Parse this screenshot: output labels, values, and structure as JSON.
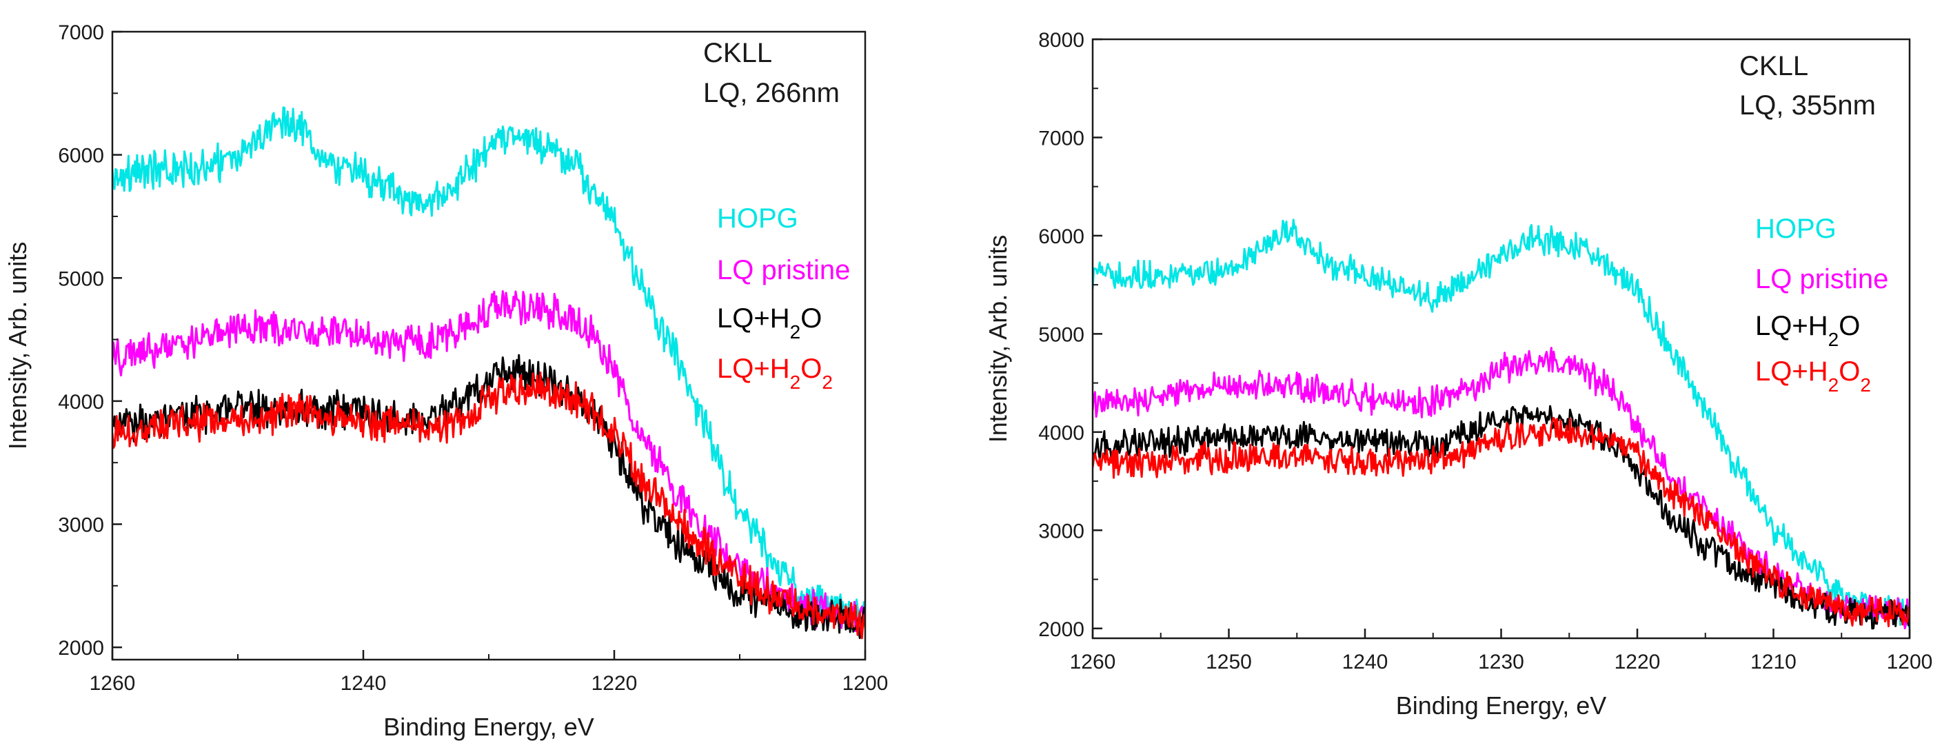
{
  "chart_data": [
    {
      "type": "line",
      "title": "",
      "xlabel": "Binding Energy, eV",
      "ylabel": "Intensity, Arb. units",
      "xlim": [
        1260,
        1200
      ],
      "ylim": [
        1900,
        7000
      ],
      "x_ticks": [
        1260,
        1240,
        1220,
        1200
      ],
      "y_ticks": [
        2000,
        3000,
        4000,
        5000,
        6000,
        7000
      ],
      "annotation": [
        "CKLL",
        "LQ, 266nm"
      ],
      "series": [
        {
          "name": "HOPG",
          "label_parts": [
            [
              "HOPG",
              false
            ]
          ],
          "color": "#00e5e5",
          "x": [
            1260,
            1255,
            1250,
            1247,
            1245,
            1243,
            1240,
            1237,
            1235,
            1233,
            1230,
            1228,
            1225,
            1223,
            1220,
            1218,
            1215,
            1212,
            1210,
            1207,
            1205,
            1203,
            1200
          ],
          "values": [
            5850,
            5880,
            5950,
            6300,
            6250,
            5950,
            5850,
            5650,
            5600,
            5700,
            6050,
            6150,
            6050,
            5900,
            5450,
            4950,
            4350,
            3600,
            3100,
            2650,
            2450,
            2350,
            2250
          ]
        },
        {
          "name": "LQ pristine",
          "label_parts": [
            [
              "LQ pristine",
              false
            ]
          ],
          "color": "#ff00ff",
          "x": [
            1260,
            1255,
            1250,
            1245,
            1240,
            1235,
            1232,
            1230,
            1228,
            1225,
            1222,
            1220,
            1218,
            1215,
            1212,
            1210,
            1207,
            1205,
            1203,
            1200
          ],
          "values": [
            4350,
            4450,
            4600,
            4580,
            4520,
            4450,
            4600,
            4750,
            4780,
            4750,
            4550,
            4250,
            3750,
            3250,
            2850,
            2650,
            2450,
            2350,
            2280,
            2250
          ]
        },
        {
          "name": "LQ+H2O",
          "label_parts": [
            [
              "LQ+H",
              false
            ],
            [
              "2",
              true
            ],
            [
              "O",
              false
            ]
          ],
          "color": "#000000",
          "x": [
            1260,
            1255,
            1250,
            1245,
            1240,
            1235,
            1232,
            1230,
            1228,
            1225,
            1222,
            1220,
            1218,
            1215,
            1212,
            1210,
            1207,
            1205,
            1200
          ],
          "values": [
            3800,
            3850,
            3950,
            3950,
            3900,
            3850,
            4000,
            4200,
            4250,
            4150,
            3950,
            3650,
            3200,
            2850,
            2600,
            2450,
            2350,
            2250,
            2200
          ]
        },
        {
          "name": "LQ+H2O2",
          "label_parts": [
            [
              "LQ+H",
              false
            ],
            [
              "2",
              true
            ],
            [
              "O",
              false
            ],
            [
              "2",
              true
            ]
          ],
          "color": "#ff0000",
          "x": [
            1260,
            1255,
            1250,
            1245,
            1240,
            1235,
            1232,
            1230,
            1228,
            1225,
            1222,
            1220,
            1218,
            1215,
            1212,
            1210,
            1207,
            1205,
            1200
          ],
          "values": [
            3750,
            3800,
            3850,
            3900,
            3850,
            3800,
            3850,
            4000,
            4100,
            4050,
            3950,
            3750,
            3400,
            3050,
            2750,
            2550,
            2400,
            2300,
            2200
          ]
        }
      ]
    },
    {
      "type": "line",
      "title": "",
      "xlabel": "Binding Energy, eV",
      "ylabel": "Intensity, Arb. units",
      "xlim": [
        1260,
        1200
      ],
      "ylim": [
        1900,
        8000
      ],
      "x_ticks": [
        1260,
        1250,
        1240,
        1230,
        1220,
        1210,
        1200
      ],
      "y_ticks": [
        2000,
        3000,
        4000,
        5000,
        6000,
        7000,
        8000
      ],
      "annotation": [
        "CKLL",
        "LQ, 355nm"
      ],
      "series": [
        {
          "name": "HOPG",
          "label_parts": [
            [
              "HOPG",
              false
            ]
          ],
          "color": "#00e5e5",
          "x": [
            1260,
            1255,
            1250,
            1247,
            1245,
            1243,
            1240,
            1237,
            1235,
            1233,
            1230,
            1228,
            1225,
            1223,
            1220,
            1218,
            1215,
            1212,
            1210,
            1207,
            1205,
            1203,
            1200
          ],
          "values": [
            5600,
            5600,
            5650,
            5950,
            6050,
            5750,
            5600,
            5450,
            5350,
            5500,
            5800,
            5950,
            5950,
            5800,
            5450,
            4950,
            4200,
            3500,
            3000,
            2600,
            2350,
            2200,
            2150
          ]
        },
        {
          "name": "LQ pristine",
          "label_parts": [
            [
              "LQ pristine",
              false
            ]
          ],
          "color": "#ff00ff",
          "x": [
            1260,
            1255,
            1250,
            1245,
            1240,
            1235,
            1232,
            1230,
            1228,
            1225,
            1222,
            1220,
            1218,
            1215,
            1212,
            1210,
            1207,
            1205,
            1203,
            1200
          ],
          "values": [
            4300,
            4350,
            4500,
            4450,
            4350,
            4300,
            4450,
            4650,
            4700,
            4700,
            4450,
            4100,
            3650,
            3200,
            2800,
            2550,
            2350,
            2250,
            2200,
            2150
          ]
        },
        {
          "name": "LQ+H2O",
          "label_parts": [
            [
              "LQ+H",
              false
            ],
            [
              "2",
              true
            ],
            [
              "O",
              false
            ]
          ],
          "color": "#000000",
          "x": [
            1260,
            1255,
            1250,
            1245,
            1240,
            1235,
            1232,
            1230,
            1228,
            1225,
            1222,
            1220,
            1218,
            1215,
            1212,
            1210,
            1207,
            1205,
            1200
          ],
          "values": [
            3850,
            3900,
            3950,
            3950,
            3900,
            3850,
            4000,
            4150,
            4200,
            4100,
            3900,
            3600,
            3200,
            2850,
            2550,
            2400,
            2250,
            2150,
            2150
          ]
        },
        {
          "name": "LQ+H2O2",
          "label_parts": [
            [
              "LQ+H",
              false
            ],
            [
              "2",
              true
            ],
            [
              "O",
              false
            ],
            [
              "2",
              true
            ]
          ],
          "color": "#ff0000",
          "x": [
            1260,
            1255,
            1250,
            1245,
            1240,
            1235,
            1232,
            1230,
            1228,
            1225,
            1222,
            1220,
            1218,
            1215,
            1212,
            1210,
            1207,
            1205,
            1200
          ],
          "values": [
            3700,
            3700,
            3750,
            3750,
            3700,
            3700,
            3800,
            3950,
            4000,
            4000,
            3950,
            3800,
            3450,
            3100,
            2750,
            2500,
            2300,
            2200,
            2150
          ]
        }
      ]
    }
  ]
}
